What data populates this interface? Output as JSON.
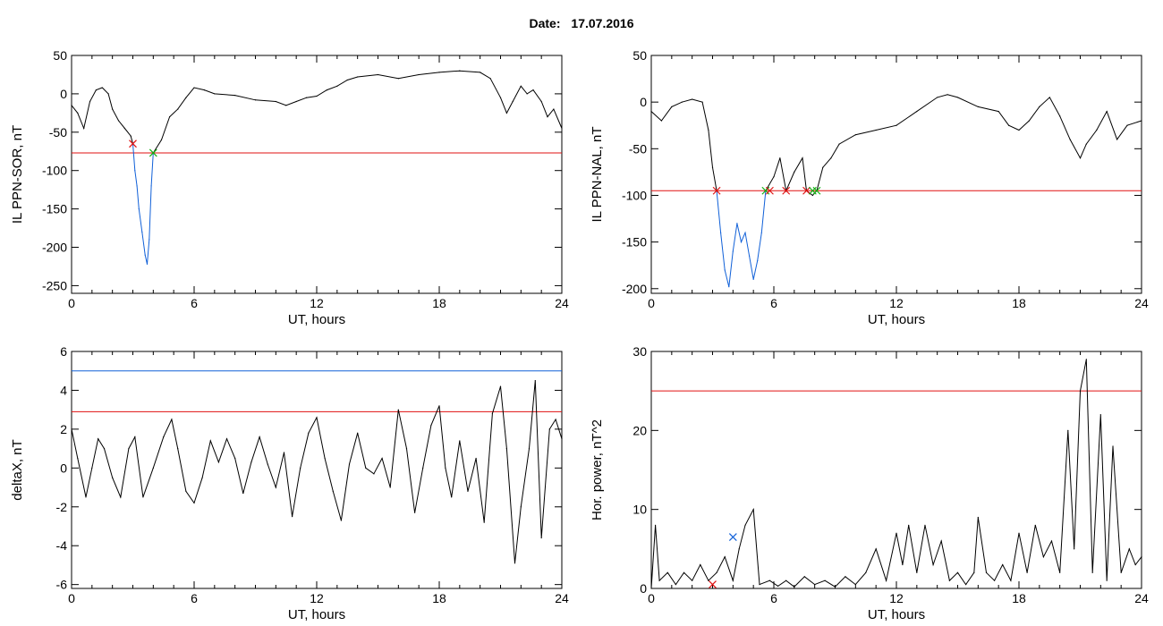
{
  "header": {
    "date_label": "Date:",
    "date_value": "17.07.2016"
  },
  "colors": {
    "black": "#000000",
    "red": "#e01010",
    "blue": "#1060d8",
    "green": "#10b010"
  },
  "chart_data": [
    {
      "type": "line",
      "ylabel": "IL PPN-SOR, nT",
      "xlabel": "UT, hours",
      "xlim": [
        0,
        24
      ],
      "ylim": [
        -260,
        50
      ],
      "xticks": [
        0,
        6,
        12,
        18,
        24
      ],
      "yticks": [
        50,
        0,
        -50,
        -100,
        -150,
        -200,
        -250
      ],
      "threshold_lines": [
        {
          "y": -77,
          "color": "red"
        }
      ],
      "series": [
        {
          "color": "black",
          "points": [
            [
              0,
              -15
            ],
            [
              0.3,
              -25
            ],
            [
              0.6,
              -45
            ],
            [
              0.9,
              -10
            ],
            [
              1.2,
              5
            ],
            [
              1.5,
              8
            ],
            [
              1.8,
              0
            ],
            [
              2.0,
              -20
            ],
            [
              2.3,
              -35
            ],
            [
              2.6,
              -45
            ],
            [
              2.9,
              -55
            ],
            [
              3.0,
              -65
            ]
          ]
        },
        {
          "color": "blue",
          "points": [
            [
              3.0,
              -65
            ],
            [
              3.1,
              -100
            ],
            [
              3.2,
              -120
            ],
            [
              3.3,
              -150
            ],
            [
              3.45,
              -180
            ],
            [
              3.6,
              -210
            ],
            [
              3.7,
              -222
            ],
            [
              3.8,
              -190
            ],
            [
              3.9,
              -120
            ],
            [
              4.0,
              -77
            ]
          ]
        },
        {
          "color": "black",
          "points": [
            [
              4.0,
              -77
            ],
            [
              4.4,
              -60
            ],
            [
              4.8,
              -30
            ],
            [
              5.2,
              -20
            ],
            [
              5.6,
              -5
            ],
            [
              6.0,
              8
            ],
            [
              6.5,
              5
            ],
            [
              7.0,
              0
            ],
            [
              8.0,
              -2
            ],
            [
              9.0,
              -8
            ],
            [
              10.0,
              -10
            ],
            [
              10.5,
              -15
            ],
            [
              11.0,
              -10
            ],
            [
              11.5,
              -5
            ],
            [
              12.0,
              -3
            ],
            [
              12.5,
              5
            ],
            [
              13.0,
              10
            ],
            [
              13.5,
              18
            ],
            [
              14.0,
              22
            ],
            [
              15.0,
              25
            ],
            [
              16.0,
              20
            ],
            [
              17.0,
              25
            ],
            [
              18.0,
              28
            ],
            [
              19.0,
              30
            ],
            [
              20.0,
              28
            ],
            [
              20.5,
              20
            ],
            [
              21.0,
              -5
            ],
            [
              21.3,
              -25
            ],
            [
              21.6,
              -10
            ],
            [
              22.0,
              10
            ],
            [
              22.3,
              0
            ],
            [
              22.6,
              5
            ],
            [
              23.0,
              -10
            ],
            [
              23.3,
              -30
            ],
            [
              23.6,
              -20
            ],
            [
              24.0,
              -45
            ]
          ]
        }
      ],
      "markers": [
        {
          "x": 3.0,
          "y": -65,
          "color": "red"
        },
        {
          "x": 4.0,
          "y": -77,
          "color": "green"
        }
      ]
    },
    {
      "type": "line",
      "ylabel": "IL PPN-NAL, nT",
      "xlabel": "UT, hours",
      "xlim": [
        0,
        24
      ],
      "ylim": [
        -205,
        50
      ],
      "xticks": [
        0,
        6,
        12,
        18,
        24
      ],
      "yticks": [
        50,
        0,
        -50,
        -100,
        -150,
        -200
      ],
      "threshold_lines": [
        {
          "y": -95,
          "color": "red"
        }
      ],
      "series": [
        {
          "color": "black",
          "points": [
            [
              0,
              -10
            ],
            [
              0.5,
              -20
            ],
            [
              1.0,
              -5
            ],
            [
              1.5,
              0
            ],
            [
              2.0,
              3
            ],
            [
              2.5,
              0
            ],
            [
              2.8,
              -30
            ],
            [
              3.0,
              -70
            ],
            [
              3.2,
              -95
            ]
          ]
        },
        {
          "color": "blue",
          "points": [
            [
              3.2,
              -95
            ],
            [
              3.4,
              -140
            ],
            [
              3.6,
              -180
            ],
            [
              3.8,
              -198
            ],
            [
              4.0,
              -160
            ],
            [
              4.2,
              -130
            ],
            [
              4.4,
              -150
            ],
            [
              4.6,
              -140
            ],
            [
              4.8,
              -165
            ],
            [
              5.0,
              -190
            ],
            [
              5.2,
              -170
            ],
            [
              5.4,
              -140
            ],
            [
              5.6,
              -95
            ]
          ]
        },
        {
          "color": "black",
          "points": [
            [
              5.6,
              -95
            ],
            [
              6.0,
              -80
            ],
            [
              6.3,
              -60
            ],
            [
              6.6,
              -95
            ],
            [
              7.0,
              -75
            ],
            [
              7.4,
              -60
            ],
            [
              7.6,
              -95
            ],
            [
              7.9,
              -100
            ],
            [
              8.1,
              -95
            ],
            [
              8.4,
              -70
            ],
            [
              8.8,
              -60
            ],
            [
              9.2,
              -45
            ],
            [
              10.0,
              -35
            ],
            [
              11.0,
              -30
            ],
            [
              12.0,
              -25
            ],
            [
              13.0,
              -10
            ],
            [
              14.0,
              5
            ],
            [
              14.5,
              8
            ],
            [
              15.0,
              5
            ],
            [
              16.0,
              -5
            ],
            [
              17.0,
              -10
            ],
            [
              17.5,
              -25
            ],
            [
              18.0,
              -30
            ],
            [
              18.5,
              -20
            ],
            [
              19.0,
              -5
            ],
            [
              19.5,
              5
            ],
            [
              20.0,
              -15
            ],
            [
              20.5,
              -40
            ],
            [
              21.0,
              -60
            ],
            [
              21.3,
              -45
            ],
            [
              21.8,
              -30
            ],
            [
              22.3,
              -10
            ],
            [
              22.8,
              -40
            ],
            [
              23.3,
              -25
            ],
            [
              24.0,
              -20
            ]
          ]
        }
      ],
      "markers": [
        {
          "x": 3.2,
          "y": -95,
          "color": "red"
        },
        {
          "x": 5.6,
          "y": -95,
          "color": "green"
        },
        {
          "x": 5.8,
          "y": -95,
          "color": "red"
        },
        {
          "x": 6.6,
          "y": -95,
          "color": "red"
        },
        {
          "x": 7.6,
          "y": -95,
          "color": "red"
        },
        {
          "x": 7.9,
          "y": -95,
          "color": "green"
        },
        {
          "x": 8.1,
          "y": -95,
          "color": "green"
        }
      ]
    },
    {
      "type": "line",
      "ylabel": "deltaX, nT",
      "xlabel": "UT, hours",
      "xlim": [
        0,
        24
      ],
      "ylim": [
        -6.2,
        6
      ],
      "xticks": [
        0,
        6,
        12,
        18,
        24
      ],
      "yticks": [
        6,
        4,
        2,
        0,
        -2,
        -4,
        -6
      ],
      "threshold_lines": [
        {
          "y": 5,
          "color": "blue"
        },
        {
          "y": 2.9,
          "color": "red"
        }
      ],
      "series": [
        {
          "color": "black",
          "points": [
            [
              0,
              2
            ],
            [
              0.3,
              0.5
            ],
            [
              0.7,
              -1.5
            ],
            [
              1.0,
              0
            ],
            [
              1.3,
              1.5
            ],
            [
              1.6,
              1
            ],
            [
              2.0,
              -0.5
            ],
            [
              2.4,
              -1.5
            ],
            [
              2.8,
              1.0
            ],
            [
              3.1,
              1.6
            ],
            [
              3.5,
              -1.5
            ],
            [
              4.0,
              0
            ],
            [
              4.5,
              1.6
            ],
            [
              4.9,
              2.5
            ],
            [
              5.2,
              1.0
            ],
            [
              5.6,
              -1.2
            ],
            [
              6.0,
              -1.8
            ],
            [
              6.4,
              -0.5
            ],
            [
              6.8,
              1.4
            ],
            [
              7.2,
              0.3
            ],
            [
              7.6,
              1.5
            ],
            [
              8.0,
              0.5
            ],
            [
              8.4,
              -1.3
            ],
            [
              8.8,
              0.3
            ],
            [
              9.2,
              1.6
            ],
            [
              9.6,
              0.2
            ],
            [
              10.0,
              -1
            ],
            [
              10.4,
              0.8
            ],
            [
              10.8,
              -2.5
            ],
            [
              11.2,
              0
            ],
            [
              11.6,
              1.8
            ],
            [
              12.0,
              2.6
            ],
            [
              12.4,
              0.5
            ],
            [
              12.8,
              -1.2
            ],
            [
              13.2,
              -2.7
            ],
            [
              13.6,
              0.2
            ],
            [
              14.0,
              1.8
            ],
            [
              14.4,
              0
            ],
            [
              14.8,
              -0.3
            ],
            [
              15.2,
              0.5
            ],
            [
              15.6,
              -1.0
            ],
            [
              16.0,
              3.0
            ],
            [
              16.4,
              1
            ],
            [
              16.8,
              -2.3
            ],
            [
              17.2,
              0
            ],
            [
              17.6,
              2.2
            ],
            [
              18.0,
              3.2
            ],
            [
              18.3,
              0
            ],
            [
              18.6,
              -1.5
            ],
            [
              19.0,
              1.4
            ],
            [
              19.4,
              -1.2
            ],
            [
              19.8,
              0.5
            ],
            [
              20.2,
              -2.8
            ],
            [
              20.6,
              2.8
            ],
            [
              21.0,
              4.2
            ],
            [
              21.3,
              1
            ],
            [
              21.7,
              -4.9
            ],
            [
              22.0,
              -2
            ],
            [
              22.4,
              1.0
            ],
            [
              22.7,
              4.5
            ],
            [
              23.0,
              -3.6
            ],
            [
              23.4,
              2.0
            ],
            [
              23.7,
              2.5
            ],
            [
              24.0,
              1.5
            ]
          ]
        }
      ],
      "markers": []
    },
    {
      "type": "line",
      "ylabel": "Hor. power, nT^2",
      "xlabel": "UT, hours",
      "xlim": [
        0,
        24
      ],
      "ylim": [
        0,
        30
      ],
      "xticks": [
        0,
        6,
        12,
        18,
        24
      ],
      "yticks": [
        30,
        20,
        10,
        0
      ],
      "threshold_lines": [
        {
          "y": 25,
          "color": "red"
        }
      ],
      "series": [
        {
          "color": "black",
          "points": [
            [
              0,
              0
            ],
            [
              0.2,
              8
            ],
            [
              0.4,
              1
            ],
            [
              0.8,
              2
            ],
            [
              1.2,
              0.5
            ],
            [
              1.6,
              2
            ],
            [
              2.0,
              1
            ],
            [
              2.4,
              3
            ],
            [
              2.8,
              1
            ],
            [
              3.2,
              2
            ],
            [
              3.6,
              4
            ],
            [
              4.0,
              1
            ],
            [
              4.3,
              5
            ],
            [
              4.6,
              8
            ],
            [
              5.0,
              10
            ],
            [
              5.3,
              0.5
            ],
            [
              5.8,
              1
            ],
            [
              6.2,
              0.3
            ],
            [
              6.6,
              1
            ],
            [
              7.0,
              0.2
            ],
            [
              7.5,
              1.5
            ],
            [
              8.0,
              0.5
            ],
            [
              8.5,
              1
            ],
            [
              9.0,
              0.2
            ],
            [
              9.5,
              1.5
            ],
            [
              10.0,
              0.5
            ],
            [
              10.5,
              2
            ],
            [
              11.0,
              5
            ],
            [
              11.5,
              1
            ],
            [
              12.0,
              7
            ],
            [
              12.3,
              3
            ],
            [
              12.6,
              8
            ],
            [
              13.0,
              2
            ],
            [
              13.4,
              8
            ],
            [
              13.8,
              3
            ],
            [
              14.2,
              6
            ],
            [
              14.6,
              1
            ],
            [
              15.0,
              2
            ],
            [
              15.4,
              0.5
            ],
            [
              15.8,
              2
            ],
            [
              16.0,
              9
            ],
            [
              16.4,
              2
            ],
            [
              16.8,
              1
            ],
            [
              17.2,
              3
            ],
            [
              17.6,
              1
            ],
            [
              18.0,
              7
            ],
            [
              18.4,
              2
            ],
            [
              18.8,
              8
            ],
            [
              19.2,
              4
            ],
            [
              19.6,
              6
            ],
            [
              20.0,
              2
            ],
            [
              20.4,
              20
            ],
            [
              20.7,
              5
            ],
            [
              21.0,
              25
            ],
            [
              21.3,
              29
            ],
            [
              21.6,
              2
            ],
            [
              22.0,
              22
            ],
            [
              22.3,
              1
            ],
            [
              22.6,
              18
            ],
            [
              23.0,
              2
            ],
            [
              23.4,
              5
            ],
            [
              23.7,
              3
            ],
            [
              24.0,
              4
            ]
          ]
        }
      ],
      "markers": [
        {
          "x": 3.0,
          "y": 0.5,
          "color": "red"
        },
        {
          "x": 4.0,
          "y": 6.5,
          "color": "blue"
        }
      ]
    }
  ]
}
